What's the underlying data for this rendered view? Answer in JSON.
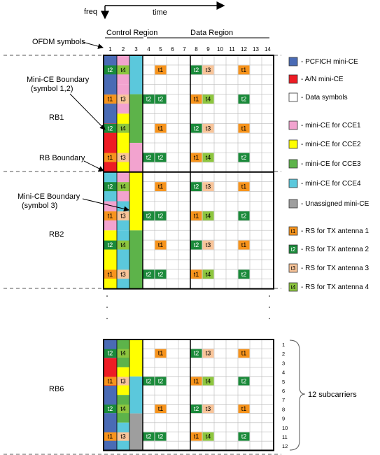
{
  "axes": {
    "freq": "freq",
    "time": "time",
    "ofdm_symbols": "OFDM symbols",
    "control_region": "Control Region",
    "data_region": "Data Region",
    "symbol_numbers": [
      "1",
      "2",
      "3",
      "4",
      "5",
      "6",
      "7",
      "8",
      "9",
      "10",
      "11",
      "12",
      "13",
      "14"
    ]
  },
  "left_labels": {
    "mini_ce_boundary_12": [
      "Mini-CE Boundary",
      "(symbol 1,2)"
    ],
    "rb1": "RB1",
    "rb_boundary": "RB Boundary",
    "mini_ce_boundary_3": [
      "Mini-CE Boundary",
      "(symbol 3)"
    ],
    "rb2": "RB2",
    "rb6": "RB6"
  },
  "legend": [
    {
      "label": "- PCFICH mini-CE",
      "swatch": "#4a6bb5"
    },
    {
      "label": "- A/N mini-CE",
      "swatch": "#ee1c24"
    },
    {
      "label": "- Data symbols",
      "swatch": "#ffffff"
    },
    {
      "label": "- mini-CE for CCE1",
      "swatch": "#f2a3cf"
    },
    {
      "label": "- mini-CE for CCE2",
      "swatch": "#ffff00"
    },
    {
      "label": "- mini-CE for CCE3",
      "swatch": "#5db34a"
    },
    {
      "label": "- mini-CE for CCE4",
      "swatch": "#5bc8dc"
    },
    {
      "label": "- Unassigned mini-CE",
      "swatch": "#9e9e9e"
    },
    {
      "label": "- RS for TX antenna 1",
      "swatch": "#f7941d",
      "tag": "t1"
    },
    {
      "label": "- RS for TX antenna 2",
      "swatch": "#1a8a3a",
      "tag": "t2"
    },
    {
      "label": "- RS for TX antenna 3",
      "swatch": "#f9c59a",
      "tag": "t3"
    },
    {
      "label": "- RS for TX antenna 4",
      "swatch": "#8dc63f",
      "tag": "t4"
    }
  ],
  "rs_tags": {
    "t1": "t1",
    "t2": "t2",
    "t3": "t3",
    "t4": "t4"
  },
  "subcarrier_numbers": [
    "1",
    "2",
    "3",
    "4",
    "5",
    "6",
    "7",
    "8",
    "9",
    "10",
    "11",
    "12"
  ],
  "subcarriers_label": "12 subcarriers",
  "colors": {
    "pcfich": "#4a6bb5",
    "an": "#ee1c24",
    "cce1": "#f2a3cf",
    "cce2": "#ffff00",
    "cce3": "#5db34a",
    "cce4": "#5bc8dc",
    "unassigned": "#9e9e9e",
    "t1": "#f7941d",
    "t2": "#1a8a3a",
    "t3": "#f9c59a",
    "t4": "#8dc63f"
  }
}
